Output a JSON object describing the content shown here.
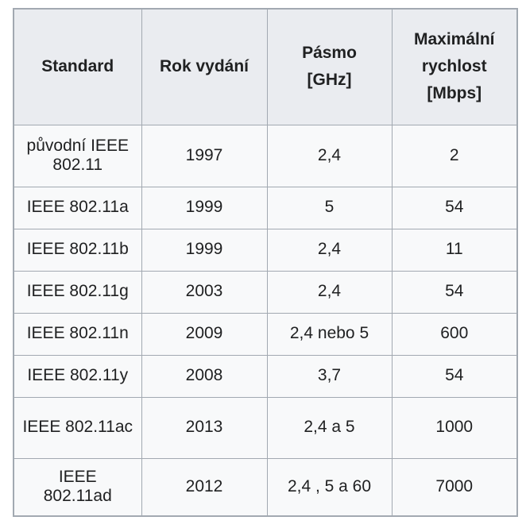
{
  "colors": {
    "page_background": "#ffffff",
    "header_background": "#eaecf0",
    "body_background": "#f8f9fa",
    "border": "#a2a9b1",
    "text": "#202122"
  },
  "table": {
    "header": {
      "standard": "Standard",
      "year": "Rok vydání",
      "band_line1": "Pásmo",
      "band_line2": "[GHz]",
      "speed_line1": "Maximální",
      "speed_line2": "rychlost",
      "speed_line3": "[Mbps]"
    },
    "rows": [
      {
        "standard": "původní IEEE 802.11",
        "year": "1997",
        "band": "2,4",
        "speed": "2"
      },
      {
        "standard": "IEEE 802.11a",
        "year": "1999",
        "band": "5",
        "speed": "54"
      },
      {
        "standard": "IEEE 802.11b",
        "year": "1999",
        "band": "2,4",
        "speed": "11"
      },
      {
        "standard": "IEEE 802.11g",
        "year": "2003",
        "band": "2,4",
        "speed": "54"
      },
      {
        "standard": "IEEE 802.11n",
        "year": "2009",
        "band": "2,4 nebo 5",
        "speed": "600"
      },
      {
        "standard": "IEEE 802.11y",
        "year": "2008",
        "band": "3,7",
        "speed": "54"
      },
      {
        "standard": "IEEE 802.11ac",
        "year": "2013",
        "band": "2,4 a 5",
        "speed": "1000"
      },
      {
        "standard": "IEEE 802.11ad",
        "year": "2012",
        "band": "2,4 , 5 a 60",
        "speed": "7000"
      }
    ]
  }
}
